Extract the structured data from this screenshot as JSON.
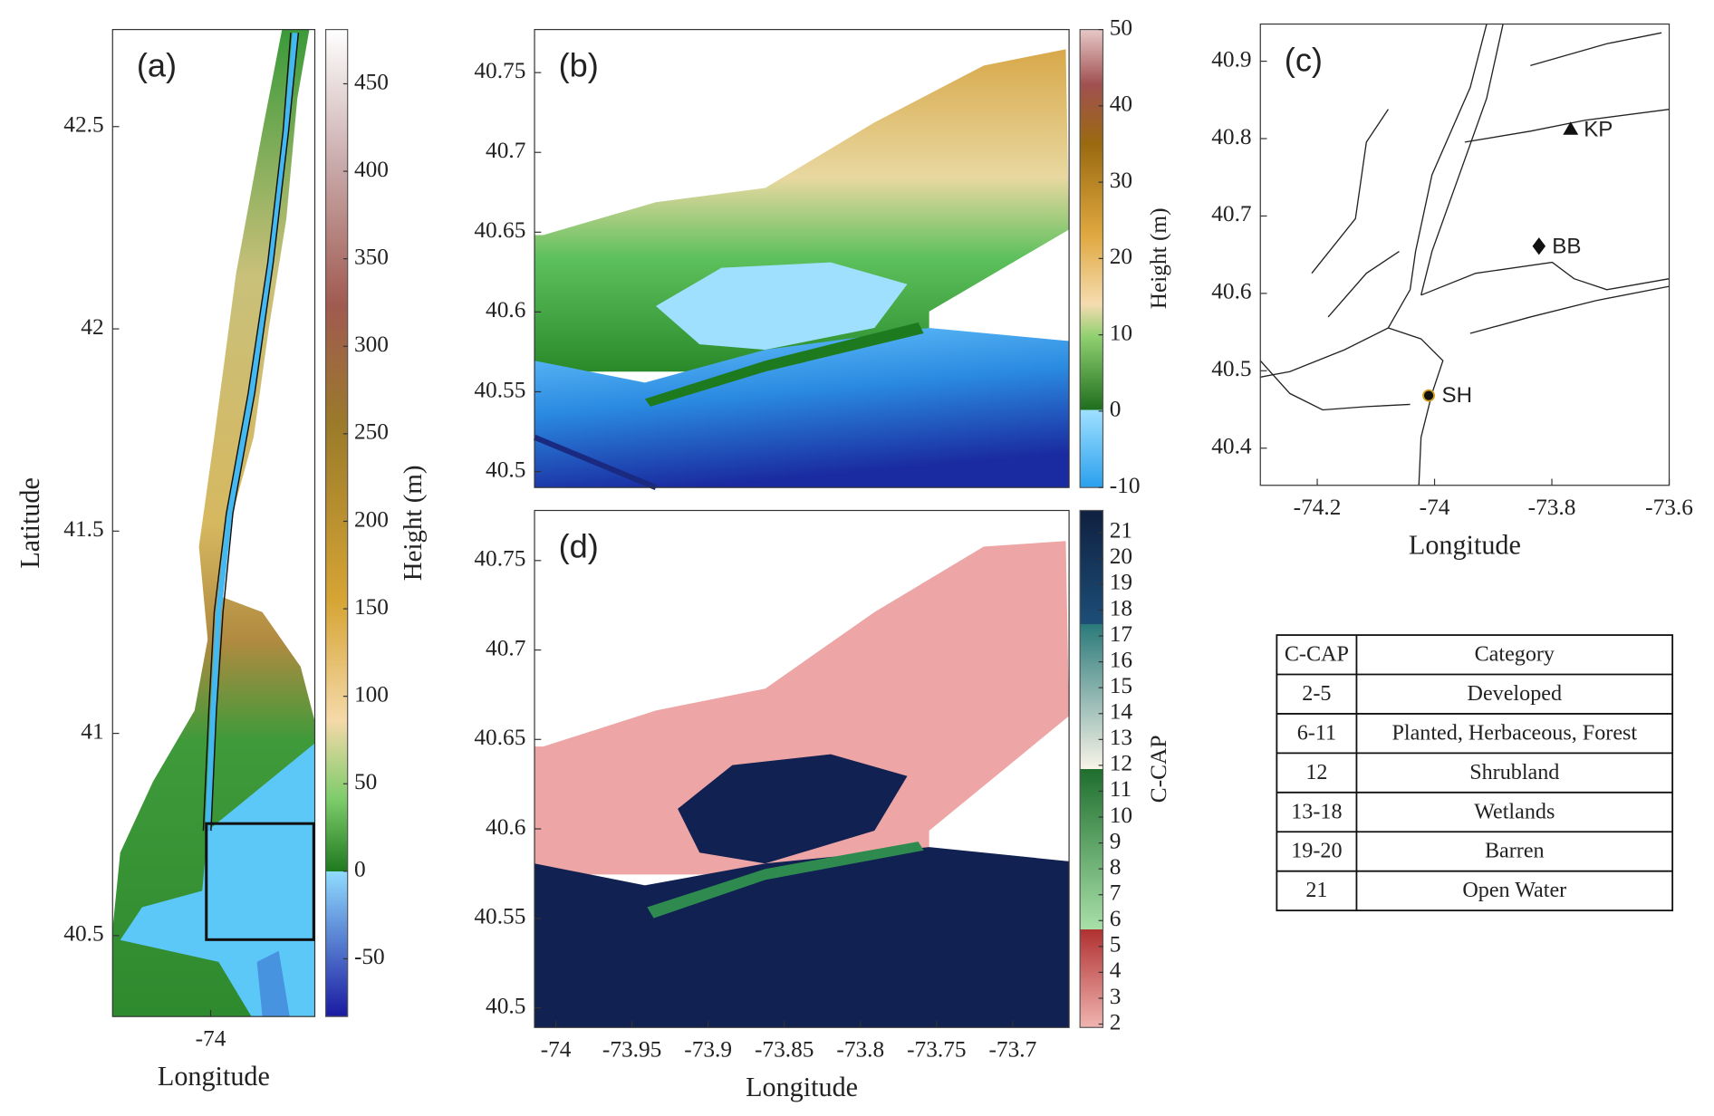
{
  "panels": [
    {
      "label": "(a)",
      "xlabel": "Longitude",
      "ylabel": "Latitude",
      "xlim": [
        -74.32,
        -73.66
      ],
      "ylim": [
        40.3,
        42.74
      ],
      "xticks": [
        -74
      ],
      "yticks": [
        40.5,
        41,
        41.5,
        42,
        42.5
      ],
      "colorbar": {
        "label": "Height (m)",
        "lim": [
          -83,
          481
        ],
        "ticks": [
          -50,
          0,
          50,
          100,
          150,
          200,
          250,
          300,
          350,
          400,
          450
        ]
      }
    },
    {
      "label": "(b)",
      "xlim": [
        -74.014,
        -73.663
      ],
      "ylim": [
        40.49,
        40.777
      ],
      "yticks": [
        40.5,
        40.55,
        40.6,
        40.65,
        40.7,
        40.75
      ],
      "colorbar": {
        "label": "Height (m)",
        "lim": [
          -10,
          50
        ],
        "ticks": [
          -10,
          0,
          10,
          20,
          30,
          40,
          50
        ]
      }
    },
    {
      "label": "(c)",
      "xlabel": "Longitude",
      "xlim": [
        -74.297,
        -73.6
      ],
      "ylim": [
        40.352,
        40.948
      ],
      "xticks": [
        -74.2,
        -74,
        -73.8,
        -73.6
      ],
      "yticks": [
        40.4,
        40.5,
        40.6,
        40.7,
        40.8,
        40.9
      ],
      "sites": [
        {
          "label": "KP",
          "lon": -73.768,
          "lat": 40.812,
          "marker": "triangle"
        },
        {
          "label": "BB",
          "lon": -73.822,
          "lat": 40.661,
          "marker": "diamond"
        },
        {
          "label": "SH",
          "lon": -74.01,
          "lat": 40.468,
          "marker": "circle"
        }
      ]
    },
    {
      "label": "(d)",
      "xlabel": "Longitude",
      "xlim": [
        -74.014,
        -73.663
      ],
      "ylim": [
        40.489,
        40.778
      ],
      "xticks": [
        -74,
        -73.95,
        -73.9,
        -73.85,
        -73.8,
        -73.75,
        -73.7
      ],
      "yticks": [
        40.5,
        40.55,
        40.6,
        40.65,
        40.7,
        40.75
      ],
      "colorbar": {
        "label": "C-CAP",
        "lim": [
          1.87,
          21.85
        ],
        "ticks": [
          2,
          3,
          4,
          5,
          6,
          7,
          8,
          9,
          10,
          11,
          12,
          13,
          14,
          15,
          16,
          17,
          18,
          19,
          20,
          21
        ]
      }
    }
  ],
  "table": {
    "header": [
      "C-CAP",
      "Category"
    ],
    "rows": [
      [
        "2-5",
        "Developed"
      ],
      [
        "6-11",
        "Planted, Herbaceous, Forest"
      ],
      [
        "12",
        "Shrubland"
      ],
      [
        "13-18",
        "Wetlands"
      ],
      [
        "19-20",
        "Barren"
      ],
      [
        "21",
        "Open Water"
      ]
    ]
  }
}
